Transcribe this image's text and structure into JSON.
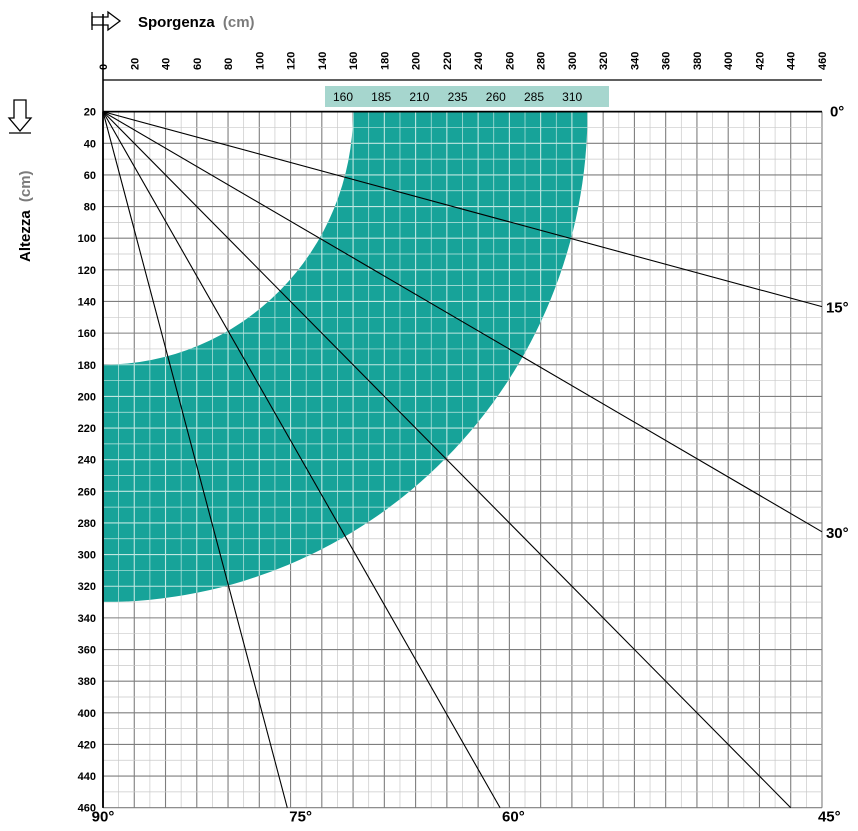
{
  "chart_data": {
    "type": "other",
    "x_axis": {
      "label": "Sporgenza",
      "unit": "(cm)",
      "ticks": [
        0,
        20,
        40,
        60,
        80,
        100,
        120,
        140,
        160,
        180,
        200,
        220,
        240,
        260,
        280,
        300,
        320,
        340,
        360,
        380,
        400,
        420,
        440,
        460
      ],
      "range": [
        0,
        460
      ]
    },
    "y_axis": {
      "label": "Altezza",
      "unit": "(cm)",
      "ticks": [
        20,
        40,
        60,
        80,
        100,
        120,
        140,
        160,
        180,
        200,
        220,
        240,
        260,
        280,
        300,
        320,
        340,
        360,
        380,
        400,
        420,
        440,
        460
      ],
      "range": [
        0,
        460
      ]
    },
    "projection_labels": [
      "160",
      "185",
      "210",
      "235",
      "260",
      "285",
      "310"
    ],
    "shaded_band": {
      "inner_radius": 160,
      "outer_radius": 310,
      "color": "#17a399"
    },
    "angle_lines": [
      {
        "angle": 0,
        "label": "0°"
      },
      {
        "angle": 15,
        "label": "15°"
      },
      {
        "angle": 30,
        "label": "30°"
      },
      {
        "angle": 45,
        "label": "45°"
      },
      {
        "angle": 60,
        "label": "60°"
      },
      {
        "angle": 75,
        "label": "75°"
      },
      {
        "angle": 90,
        "label": "90°"
      }
    ],
    "grid": true,
    "colors": {
      "band": "#17a399",
      "header_band": "#a6d6ce",
      "grid_major": "#7e7e7e",
      "grid_minor": "#c9c9c9",
      "line": "#000000"
    }
  }
}
